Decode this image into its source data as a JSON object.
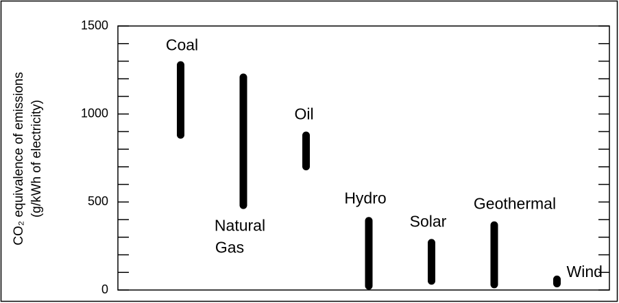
{
  "chart_data": {
    "type": "range",
    "ylabel": [
      "CO₂ equivalence of emissions",
      "(g/kWh of electricity)"
    ],
    "categories": [
      "Coal",
      "Natural Gas",
      "Oil",
      "Hydro",
      "Solar",
      "Geothermal",
      "Wind"
    ],
    "series": [
      {
        "name": "low",
        "values": [
          860,
          460,
          680,
          2,
          30,
          10,
          15
        ]
      },
      {
        "name": "high",
        "values": [
          1300,
          1230,
          900,
          415,
          290,
          390,
          82
        ]
      }
    ],
    "color": "#000000",
    "ylim": [
      0,
      1500
    ],
    "yticks": [
      0,
      500,
      1000,
      1500
    ],
    "yticks_minor": [
      100,
      200,
      300,
      400,
      600,
      700,
      800,
      900,
      1100,
      1200,
      1300,
      1400
    ]
  }
}
